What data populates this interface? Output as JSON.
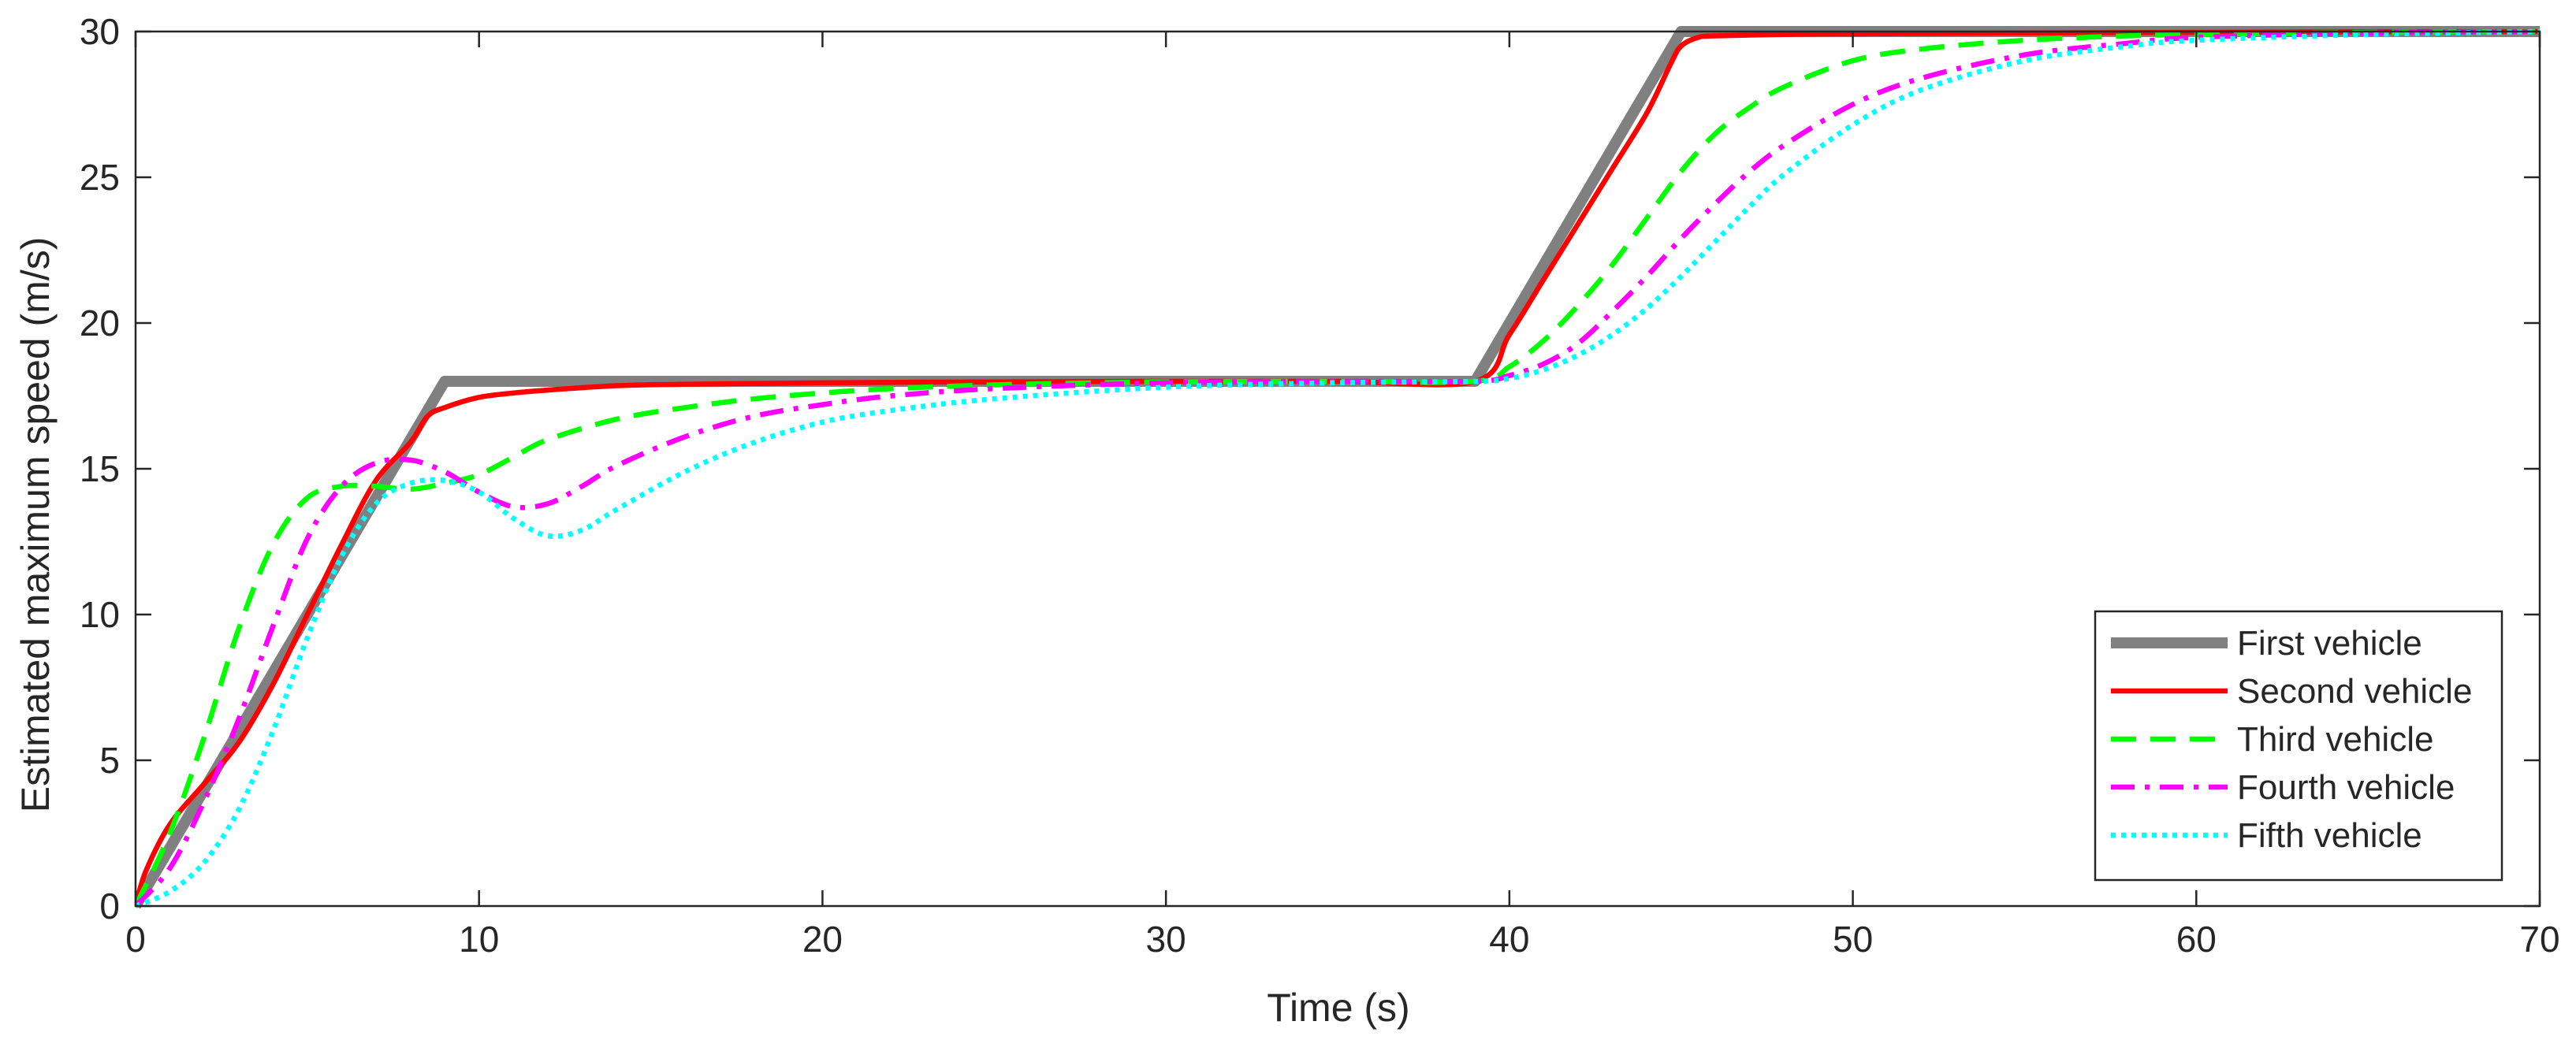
{
  "chart_data": {
    "type": "line",
    "title": "",
    "xlabel": "Time (s)",
    "ylabel": "Estimated maximum speed (m/s)",
    "xlim": [
      0,
      70
    ],
    "ylim": [
      0,
      30
    ],
    "xticks": [
      0,
      10,
      20,
      30,
      40,
      50,
      60,
      70
    ],
    "yticks": [
      0,
      5,
      10,
      15,
      20,
      25,
      30
    ],
    "grid": false,
    "legend_position": "bottom-right",
    "series": [
      {
        "name": "First vehicle",
        "color": "#808080",
        "style": "solid-thick",
        "x": [
          0,
          9,
          39,
          45,
          70
        ],
        "y": [
          0,
          18,
          18,
          30,
          30
        ]
      },
      {
        "name": "Second vehicle",
        "color": "#ff0000",
        "style": "solid",
        "x": [
          0,
          0.3,
          1,
          2,
          3,
          4,
          5,
          6,
          7,
          8,
          8.5,
          9,
          10,
          11,
          12,
          14,
          16,
          20,
          25,
          30,
          35,
          39,
          40,
          41,
          42,
          43,
          44,
          44.7,
          45,
          45.5,
          46,
          48,
          50,
          55,
          60,
          65,
          70
        ],
        "y": [
          0,
          1.2,
          2.8,
          4.2,
          5.6,
          7.6,
          10.0,
          12.4,
          14.6,
          15.9,
          16.8,
          17.1,
          17.45,
          17.6,
          17.7,
          17.85,
          17.9,
          17.95,
          17.98,
          18,
          18,
          18,
          19.6,
          21.5,
          23.4,
          25.3,
          27.2,
          28.9,
          29.5,
          29.8,
          29.85,
          29.9,
          29.92,
          29.95,
          29.97,
          29.99,
          30
        ]
      },
      {
        "name": "Third vehicle",
        "color": "#00ff00",
        "style": "dashed",
        "x": [
          0,
          1,
          2,
          3,
          4,
          5,
          6,
          7,
          8,
          9,
          10,
          11,
          12,
          14,
          16,
          18,
          20,
          22,
          25,
          28,
          30,
          35,
          39,
          40,
          41,
          42,
          43,
          44,
          45,
          46,
          47,
          48,
          50,
          52,
          55,
          58,
          60,
          65,
          70
        ],
        "y": [
          0,
          2.5,
          5.8,
          9.5,
          12.4,
          14.0,
          14.4,
          14.4,
          14.3,
          14.5,
          14.8,
          15.4,
          16.0,
          16.7,
          17.1,
          17.4,
          17.6,
          17.75,
          17.88,
          17.95,
          17.98,
          18,
          18,
          18.5,
          19.4,
          20.6,
          22.0,
          23.6,
          25.2,
          26.5,
          27.4,
          28.1,
          29.0,
          29.4,
          29.7,
          29.85,
          29.9,
          29.97,
          30
        ]
      },
      {
        "name": "Fourth vehicle",
        "color": "#ff00ff",
        "style": "dash-dot",
        "x": [
          0,
          1,
          2,
          3,
          4,
          5,
          6,
          7,
          8,
          9,
          10,
          11,
          12,
          13,
          14,
          16,
          18,
          20,
          22,
          25,
          30,
          35,
          39,
          40,
          41,
          42,
          43,
          44,
          45,
          46,
          47,
          48,
          50,
          52,
          55,
          58,
          60,
          65,
          70
        ],
        "y": [
          0,
          1.3,
          3.6,
          6.4,
          9.6,
          12.6,
          14.4,
          15.2,
          15.3,
          14.9,
          14.2,
          13.7,
          13.8,
          14.4,
          15.1,
          16.1,
          16.8,
          17.2,
          17.5,
          17.75,
          17.95,
          18,
          18,
          18.2,
          18.6,
          19.3,
          20.4,
          21.6,
          22.9,
          24.1,
          25.2,
          26.1,
          27.5,
          28.4,
          29.2,
          29.6,
          29.8,
          29.95,
          30
        ]
      },
      {
        "name": "Fifth vehicle",
        "color": "#00ffff",
        "style": "dotted",
        "x": [
          0,
          1,
          2,
          3,
          4,
          5,
          6,
          7,
          8,
          9,
          10,
          11,
          12,
          13,
          14,
          16,
          18,
          20,
          22,
          25,
          30,
          35,
          39,
          40,
          41,
          42,
          43,
          44,
          45,
          46,
          47,
          48,
          50,
          52,
          55,
          58,
          60,
          65,
          70
        ],
        "y": [
          0,
          0.5,
          1.5,
          3.3,
          6.0,
          9.2,
          12.0,
          13.8,
          14.5,
          14.6,
          14.2,
          13.3,
          12.7,
          12.9,
          13.6,
          14.9,
          15.9,
          16.6,
          17.0,
          17.4,
          17.8,
          17.95,
          18,
          18.1,
          18.4,
          18.9,
          19.6,
          20.5,
          21.6,
          22.8,
          24.0,
          25.1,
          26.8,
          28.0,
          29.0,
          29.5,
          29.7,
          29.9,
          30
        ]
      }
    ]
  }
}
